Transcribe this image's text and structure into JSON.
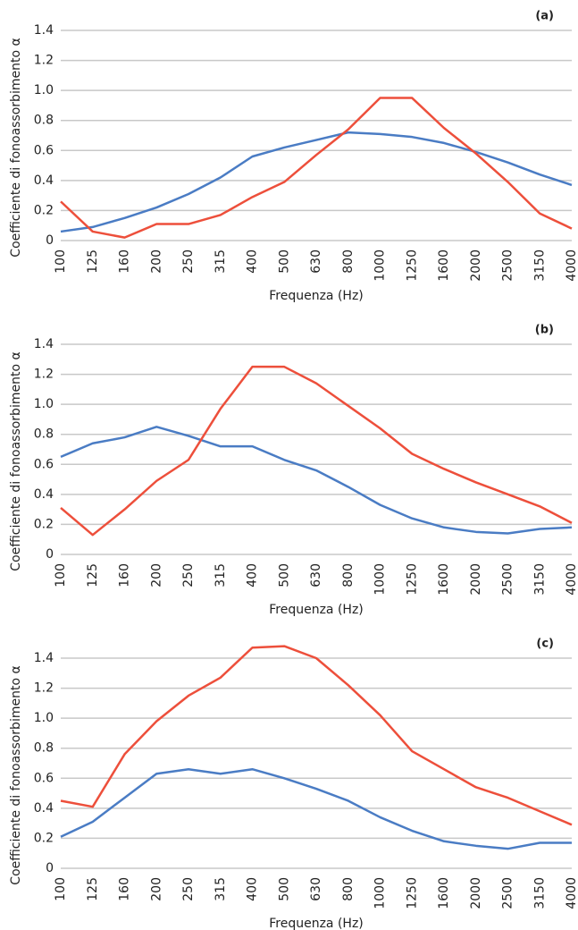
{
  "chart_data": [
    {
      "type": "line",
      "title": "(a)",
      "x_label": "Frequenza (Hz)",
      "y_label": "Coefficiente di fonoassorbimento α",
      "categories": [
        "100",
        "125",
        "160",
        "200",
        "250",
        "315",
        "400",
        "500",
        "630",
        "800",
        "1000",
        "1250",
        "1600",
        "2000",
        "2500",
        "3150",
        "4000"
      ],
      "series": [
        {
          "color": "#4a7cc4",
          "values": [
            0.06,
            0.09,
            0.15,
            0.22,
            0.31,
            0.42,
            0.56,
            0.62,
            0.67,
            0.72,
            0.71,
            0.69,
            0.65,
            0.59,
            0.52,
            0.44,
            0.37
          ]
        },
        {
          "color": "#ed4f3b",
          "values": [
            0.26,
            0.06,
            0.02,
            0.11,
            0.11,
            0.17,
            0.29,
            0.39,
            0.57,
            0.74,
            0.95,
            0.95,
            0.75,
            0.58,
            0.39,
            0.18,
            0.08
          ]
        }
      ],
      "ylim": [
        0,
        1.4
      ],
      "yticks": [
        0,
        0.2,
        0.4,
        0.6,
        0.8,
        {
          "value": 1,
          "label": "1.0"
        },
        1.2,
        1.4
      ],
      "grid": true
    },
    {
      "type": "line",
      "title": "(b)",
      "x_label": "Frequenza (Hz)",
      "y_label": "Coefficiente di fonoassorbimento α",
      "categories": [
        "100",
        "125",
        "160",
        "200",
        "250",
        "315",
        "400",
        "500",
        "630",
        "800",
        "1000",
        "1250",
        "1600",
        "2000",
        "2500",
        "3150",
        "4000"
      ],
      "series": [
        {
          "color": "#4a7cc4",
          "values": [
            0.65,
            0.74,
            0.78,
            0.85,
            0.79,
            0.72,
            0.72,
            0.63,
            0.56,
            0.45,
            0.33,
            0.24,
            0.18,
            0.15,
            0.14,
            0.17,
            0.18
          ]
        },
        {
          "color": "#ed4f3b",
          "values": [
            0.31,
            0.13,
            0.3,
            0.49,
            0.63,
            0.97,
            1.25,
            1.25,
            1.14,
            0.99,
            0.84,
            0.67,
            0.57,
            0.48,
            0.4,
            0.32,
            0.21
          ]
        }
      ],
      "ylim": [
        0,
        1.4
      ],
      "yticks": [
        0,
        0.2,
        0.4,
        0.6,
        0.8,
        {
          "value": 1,
          "label": "1.0"
        },
        1.2,
        1.4
      ],
      "grid": true
    },
    {
      "type": "line",
      "title": "(c)",
      "x_label": "Frequenza (Hz)",
      "y_label": "Coefficiente di fonoassorbimento α",
      "categories": [
        "100",
        "125",
        "160",
        "200",
        "250",
        "315",
        "400",
        "500",
        "630",
        "800",
        "1000",
        "1250",
        "1600",
        "2000",
        "2500",
        "3150",
        "4000"
      ],
      "series": [
        {
          "color": "#4a7cc4",
          "values": [
            0.21,
            0.31,
            0.47,
            0.63,
            0.66,
            0.63,
            0.66,
            0.6,
            0.53,
            0.45,
            0.34,
            0.25,
            0.18,
            0.15,
            0.13,
            0.17,
            0.17
          ]
        },
        {
          "color": "#ed4f3b",
          "values": [
            0.45,
            0.41,
            0.76,
            0.98,
            1.15,
            1.27,
            1.47,
            1.48,
            1.4,
            1.22,
            1.02,
            0.78,
            0.66,
            0.54,
            0.47,
            0.38,
            0.29
          ]
        }
      ],
      "ylim": [
        0,
        1.4
      ],
      "yticks": [
        0,
        0.2,
        0.4,
        0.6,
        0.8,
        {
          "value": 1,
          "label": "1.0"
        },
        1.2,
        1.4
      ],
      "grid": true
    }
  ]
}
